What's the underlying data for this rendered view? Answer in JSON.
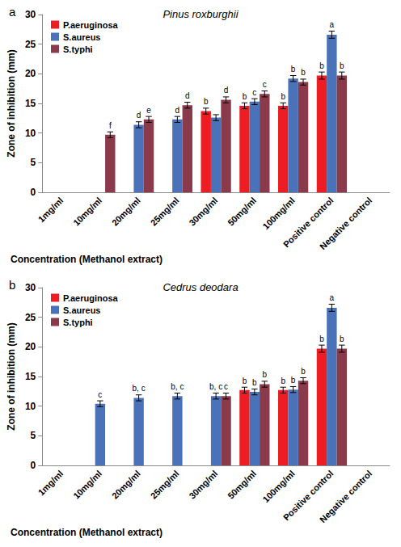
{
  "chart_data": [
    {
      "type": "bar",
      "label": "a",
      "title": "Pinus roxburghii",
      "x_label": "Concentration (Methanol extract)",
      "y_label": "Zone of inhibition (mm)",
      "categories": [
        "1mg/ml",
        "10mg/ml",
        "20mg/ml",
        "25mg/ml",
        "30mg/ml",
        "50mg/ml",
        "100mg/ml",
        "Positive control",
        "Negative control"
      ],
      "ylim": [
        0,
        30
      ],
      "yticks": [
        0,
        5,
        10,
        15,
        20,
        25,
        30
      ],
      "grid": false,
      "legend": "upper left",
      "series": [
        {
          "name": "P.aeruginosa",
          "color": "#ee1d23",
          "values": [
            null,
            null,
            null,
            null,
            13.7,
            14.6,
            14.6,
            19.7,
            null
          ],
          "errors": [
            null,
            null,
            null,
            null,
            0.5,
            0.5,
            0.5,
            0.6,
            null
          ],
          "letters": [
            null,
            null,
            null,
            null,
            "b",
            "b",
            "b",
            "b",
            null
          ]
        },
        {
          "name": "S.aureus",
          "color": "#4a72b8",
          "values": [
            null,
            null,
            11.4,
            12.3,
            12.6,
            15.3,
            19.2,
            26.6,
            null
          ],
          "errors": [
            null,
            null,
            0.5,
            0.5,
            0.5,
            0.5,
            0.5,
            0.6,
            null
          ],
          "letters": [
            null,
            null,
            "d",
            "d",
            null,
            "c",
            "b",
            "a",
            null
          ]
        },
        {
          "name": "S.typhi",
          "color": "#8b3a4c",
          "values": [
            null,
            9.7,
            12.3,
            14.7,
            15.6,
            16.6,
            18.6,
            19.7,
            null
          ],
          "errors": [
            null,
            0.5,
            0.5,
            0.5,
            0.5,
            0.5,
            0.5,
            0.6,
            null
          ],
          "letters": [
            null,
            "f",
            "e",
            "d",
            "d",
            "c",
            "b",
            "b",
            null
          ]
        }
      ]
    },
    {
      "type": "bar",
      "label": "b",
      "title": "Cedrus deodara",
      "x_label": "Concentration (Methanol extract)",
      "y_label": "Zone of inhibition (mm)",
      "categories": [
        "1mg/ml",
        "10mg/ml",
        "20mg/ml",
        "25mg/ml",
        "30mg/ml",
        "50mg/ml",
        "100mg/ml",
        "Positive control",
        "Negative control"
      ],
      "ylim": [
        0,
        30
      ],
      "yticks": [
        0,
        5,
        10,
        15,
        20,
        25,
        30
      ],
      "grid": false,
      "legend": "upper left",
      "series": [
        {
          "name": "P.aeruginosa",
          "color": "#ee1d23",
          "values": [
            null,
            null,
            null,
            null,
            null,
            12.7,
            12.7,
            19.7,
            null
          ],
          "errors": [
            null,
            null,
            null,
            null,
            null,
            0.5,
            0.5,
            0.6,
            null
          ],
          "letters": [
            null,
            null,
            null,
            null,
            null,
            "b",
            "b",
            "b",
            null
          ]
        },
        {
          "name": "S.aureus",
          "color": "#4a72b8",
          "values": [
            null,
            10.4,
            11.4,
            11.7,
            11.7,
            12.4,
            12.8,
            26.6,
            null
          ],
          "errors": [
            null,
            0.5,
            0.5,
            0.5,
            0.5,
            0.5,
            0.5,
            0.6,
            null
          ],
          "letters": [
            null,
            "c",
            "b, c",
            "b, c",
            "b, c",
            "b",
            "b",
            "a",
            null
          ]
        },
        {
          "name": "S.typhi",
          "color": "#8b3a4c",
          "values": [
            null,
            null,
            null,
            null,
            11.7,
            13.7,
            14.3,
            19.7,
            null
          ],
          "errors": [
            null,
            null,
            null,
            null,
            0.5,
            0.5,
            0.5,
            0.6,
            null
          ],
          "letters": [
            null,
            null,
            null,
            null,
            "c",
            "b",
            "b",
            "b",
            null
          ]
        }
      ]
    }
  ]
}
